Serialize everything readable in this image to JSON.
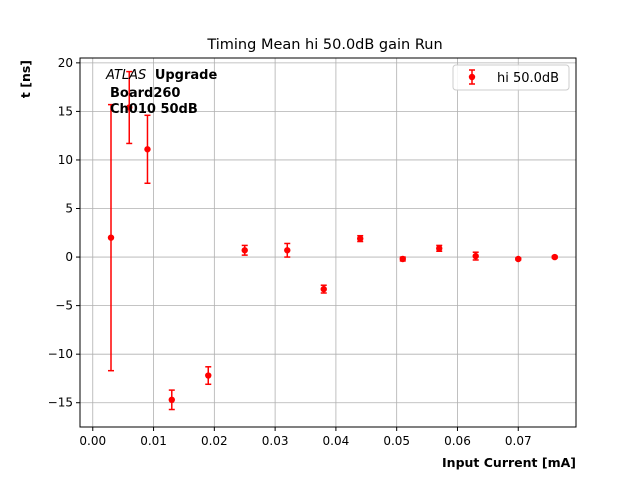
{
  "chart_data": {
    "type": "scatter",
    "title": "Timing Mean hi 50.0dB gain Run",
    "xlabel": "Input Current [mA]",
    "ylabel": "t [ns]",
    "xlim": [
      -0.0021,
      0.0795
    ],
    "ylim": [
      -17.5,
      20.5
    ],
    "xticks": [
      0.0,
      0.01,
      0.02,
      0.03,
      0.04,
      0.05,
      0.06,
      0.07
    ],
    "xtick_labels": [
      "0.00",
      "0.01",
      "0.02",
      "0.03",
      "0.04",
      "0.05",
      "0.06",
      "0.07"
    ],
    "yticks": [
      -15,
      -10,
      -5,
      0,
      5,
      10,
      15,
      20
    ],
    "ytick_labels": [
      "−15",
      "−10",
      "−5",
      "0",
      "5",
      "10",
      "15",
      "20"
    ],
    "grid": true,
    "legend_position": "top-right",
    "annotation": {
      "line1_italic": "ATLAS",
      "line1_bold": "Upgrade",
      "line2": "Board260",
      "line3": "Ch010 50dB"
    },
    "series": [
      {
        "name": "hi 50.0dB",
        "color": "#ff0000",
        "marker": "circle",
        "x": [
          0.003,
          0.006,
          0.009,
          0.013,
          0.019,
          0.025,
          0.032,
          0.038,
          0.044,
          0.051,
          0.057,
          0.063,
          0.07,
          0.076
        ],
        "y": [
          2.0,
          15.4,
          11.1,
          -14.7,
          -12.2,
          0.7,
          0.7,
          -3.3,
          1.9,
          -0.2,
          0.9,
          0.1,
          -0.2,
          0.0
        ],
        "yerr": [
          13.7,
          3.7,
          3.5,
          1.0,
          0.9,
          0.5,
          0.7,
          0.4,
          0.3,
          0.2,
          0.3,
          0.4,
          0.1,
          0.1
        ]
      }
    ]
  }
}
